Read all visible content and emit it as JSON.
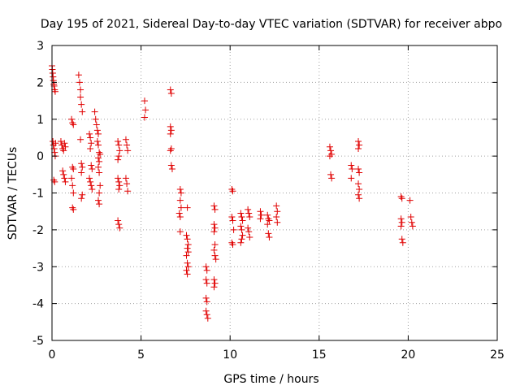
{
  "chart_data": {
    "type": "scatter",
    "title": "Day 195 of 2021, Sidereal Day-to-day VTEC variation (SDTVAR) for receiver abpo",
    "xlabel": "GPS time / hours",
    "ylabel": "SDTVAR / TECUs",
    "xlim": [
      0,
      25
    ],
    "ylim": [
      -5,
      3
    ],
    "xticks": [
      0,
      5,
      10,
      15,
      20,
      25
    ],
    "yticks": [
      -5,
      -4,
      -3,
      -2,
      -1,
      0,
      1,
      2,
      3
    ],
    "grid": true,
    "marker": "+",
    "color": "#e00000",
    "series": [
      {
        "name": "SDTVAR",
        "points": [
          [
            0.0,
            2.45
          ],
          [
            0.02,
            2.35
          ],
          [
            0.04,
            2.25
          ],
          [
            0.06,
            2.15
          ],
          [
            0.08,
            2.05
          ],
          [
            0.1,
            1.95
          ],
          [
            0.12,
            1.9
          ],
          [
            0.15,
            1.8
          ],
          [
            0.18,
            1.75
          ],
          [
            0.05,
            0.4
          ],
          [
            0.08,
            0.3
          ],
          [
            0.12,
            0.2
          ],
          [
            0.15,
            0.1
          ],
          [
            0.18,
            0.0
          ],
          [
            0.1,
            -0.65
          ],
          [
            0.15,
            -0.7
          ],
          [
            0.2,
            0.35
          ],
          [
            0.5,
            0.4
          ],
          [
            0.55,
            0.3
          ],
          [
            0.6,
            0.2
          ],
          [
            0.65,
            0.15
          ],
          [
            0.7,
            0.35
          ],
          [
            0.75,
            0.25
          ],
          [
            0.6,
            -0.4
          ],
          [
            0.65,
            -0.5
          ],
          [
            0.7,
            -0.6
          ],
          [
            0.75,
            -0.7
          ],
          [
            1.1,
            1.0
          ],
          [
            1.15,
            0.9
          ],
          [
            1.2,
            0.85
          ],
          [
            1.15,
            -0.3
          ],
          [
            1.2,
            -0.35
          ],
          [
            1.1,
            -0.6
          ],
          [
            1.15,
            -0.8
          ],
          [
            1.2,
            -1.0
          ],
          [
            1.15,
            -1.4
          ],
          [
            1.2,
            -1.45
          ],
          [
            1.5,
            2.2
          ],
          [
            1.55,
            2.0
          ],
          [
            1.6,
            1.8
          ],
          [
            1.6,
            1.6
          ],
          [
            1.65,
            1.4
          ],
          [
            1.7,
            1.2
          ],
          [
            1.6,
            0.45
          ],
          [
            1.65,
            -0.2
          ],
          [
            1.7,
            -0.3
          ],
          [
            1.65,
            -0.45
          ],
          [
            1.7,
            -1.05
          ],
          [
            1.65,
            -1.15
          ],
          [
            2.1,
            0.6
          ],
          [
            2.15,
            0.5
          ],
          [
            2.2,
            0.35
          ],
          [
            2.15,
            0.2
          ],
          [
            2.2,
            -0.25
          ],
          [
            2.25,
            -0.35
          ],
          [
            2.1,
            -0.6
          ],
          [
            2.15,
            -0.7
          ],
          [
            2.2,
            -0.8
          ],
          [
            2.25,
            -0.9
          ],
          [
            2.4,
            1.2
          ],
          [
            2.45,
            1.0
          ],
          [
            2.5,
            0.85
          ],
          [
            2.55,
            0.7
          ],
          [
            2.6,
            0.6
          ],
          [
            2.55,
            0.4
          ],
          [
            2.6,
            0.3
          ],
          [
            2.65,
            0.1
          ],
          [
            2.7,
            0.05
          ],
          [
            2.6,
            -0.05
          ],
          [
            2.65,
            -0.15
          ],
          [
            2.6,
            -0.3
          ],
          [
            2.65,
            -0.45
          ],
          [
            2.7,
            -0.8
          ],
          [
            2.65,
            -1.0
          ],
          [
            2.6,
            -1.2
          ],
          [
            2.65,
            -1.3
          ],
          [
            3.7,
            0.4
          ],
          [
            3.75,
            0.3
          ],
          [
            3.8,
            0.15
          ],
          [
            3.75,
            0.0
          ],
          [
            3.7,
            -0.1
          ],
          [
            3.7,
            -0.6
          ],
          [
            3.75,
            -0.7
          ],
          [
            3.8,
            -0.8
          ],
          [
            3.75,
            -0.9
          ],
          [
            3.7,
            -1.75
          ],
          [
            3.75,
            -1.85
          ],
          [
            3.8,
            -1.95
          ],
          [
            4.15,
            0.45
          ],
          [
            4.2,
            0.3
          ],
          [
            4.25,
            0.15
          ],
          [
            4.15,
            -0.6
          ],
          [
            4.2,
            -0.75
          ],
          [
            4.25,
            -0.95
          ],
          [
            5.2,
            1.5
          ],
          [
            5.25,
            1.25
          ],
          [
            5.2,
            1.05
          ],
          [
            6.65,
            1.8
          ],
          [
            6.7,
            1.7
          ],
          [
            6.65,
            0.8
          ],
          [
            6.7,
            0.7
          ],
          [
            6.65,
            0.6
          ],
          [
            6.7,
            0.2
          ],
          [
            6.65,
            0.15
          ],
          [
            6.7,
            -0.25
          ],
          [
            6.75,
            -0.35
          ],
          [
            7.2,
            -0.9
          ],
          [
            7.25,
            -1.0
          ],
          [
            7.2,
            -1.2
          ],
          [
            7.25,
            -1.4
          ],
          [
            7.15,
            -1.55
          ],
          [
            7.2,
            -1.65
          ],
          [
            7.2,
            -2.05
          ],
          [
            7.6,
            -1.4
          ],
          [
            7.55,
            -2.15
          ],
          [
            7.6,
            -2.25
          ],
          [
            7.65,
            -2.4
          ],
          [
            7.6,
            -2.5
          ],
          [
            7.65,
            -2.6
          ],
          [
            7.55,
            -2.7
          ],
          [
            7.6,
            -2.9
          ],
          [
            7.65,
            -3.0
          ],
          [
            7.55,
            -3.1
          ],
          [
            7.6,
            -3.2
          ],
          [
            8.65,
            -3.0
          ],
          [
            8.7,
            -3.1
          ],
          [
            8.65,
            -3.35
          ],
          [
            8.7,
            -3.45
          ],
          [
            8.65,
            -3.85
          ],
          [
            8.7,
            -3.95
          ],
          [
            8.65,
            -4.2
          ],
          [
            8.7,
            -4.3
          ],
          [
            8.75,
            -4.4
          ],
          [
            9.1,
            -1.35
          ],
          [
            9.15,
            -1.45
          ],
          [
            9.1,
            -1.85
          ],
          [
            9.15,
            -1.95
          ],
          [
            9.1,
            -2.05
          ],
          [
            9.15,
            -2.4
          ],
          [
            9.1,
            -2.55
          ],
          [
            9.15,
            -2.7
          ],
          [
            9.2,
            -2.8
          ],
          [
            9.1,
            -3.35
          ],
          [
            9.15,
            -3.45
          ],
          [
            9.1,
            -3.55
          ],
          [
            10.1,
            -0.9
          ],
          [
            10.15,
            -0.95
          ],
          [
            10.1,
            -1.65
          ],
          [
            10.15,
            -1.75
          ],
          [
            10.2,
            -2.0
          ],
          [
            10.1,
            -2.35
          ],
          [
            10.15,
            -2.4
          ],
          [
            10.6,
            -1.55
          ],
          [
            10.65,
            -1.65
          ],
          [
            10.7,
            -1.75
          ],
          [
            10.6,
            -1.9
          ],
          [
            10.65,
            -2.0
          ],
          [
            10.7,
            -2.15
          ],
          [
            10.65,
            -2.25
          ],
          [
            10.6,
            -2.35
          ],
          [
            11.0,
            -1.45
          ],
          [
            11.05,
            -1.55
          ],
          [
            11.1,
            -1.65
          ],
          [
            11.0,
            -1.95
          ],
          [
            11.05,
            -2.05
          ],
          [
            11.1,
            -2.2
          ],
          [
            11.7,
            -1.5
          ],
          [
            11.75,
            -1.6
          ],
          [
            11.7,
            -1.7
          ],
          [
            12.1,
            -1.6
          ],
          [
            12.15,
            -1.7
          ],
          [
            12.2,
            -1.75
          ],
          [
            12.1,
            -1.85
          ],
          [
            12.15,
            -2.1
          ],
          [
            12.2,
            -2.2
          ],
          [
            12.6,
            -1.35
          ],
          [
            12.65,
            -1.5
          ],
          [
            12.6,
            -1.65
          ],
          [
            12.65,
            -1.8
          ],
          [
            15.6,
            0.25
          ],
          [
            15.65,
            0.15
          ],
          [
            15.7,
            0.05
          ],
          [
            15.6,
            0.0
          ],
          [
            15.65,
            -0.5
          ],
          [
            15.7,
            -0.6
          ],
          [
            16.8,
            -0.25
          ],
          [
            16.85,
            -0.35
          ],
          [
            16.8,
            -0.6
          ],
          [
            17.2,
            0.4
          ],
          [
            17.25,
            0.3
          ],
          [
            17.2,
            0.2
          ],
          [
            17.2,
            -0.35
          ],
          [
            17.25,
            -0.45
          ],
          [
            17.2,
            -0.75
          ],
          [
            17.25,
            -0.9
          ],
          [
            17.2,
            -1.05
          ],
          [
            17.25,
            -1.15
          ],
          [
            19.6,
            -1.1
          ],
          [
            19.65,
            -1.15
          ],
          [
            19.6,
            -1.7
          ],
          [
            19.65,
            -1.8
          ],
          [
            19.6,
            -1.9
          ],
          [
            19.65,
            -2.25
          ],
          [
            19.7,
            -2.35
          ],
          [
            20.1,
            -1.2
          ],
          [
            20.15,
            -1.65
          ],
          [
            20.2,
            -1.8
          ],
          [
            20.25,
            -1.9
          ]
        ]
      }
    ]
  }
}
